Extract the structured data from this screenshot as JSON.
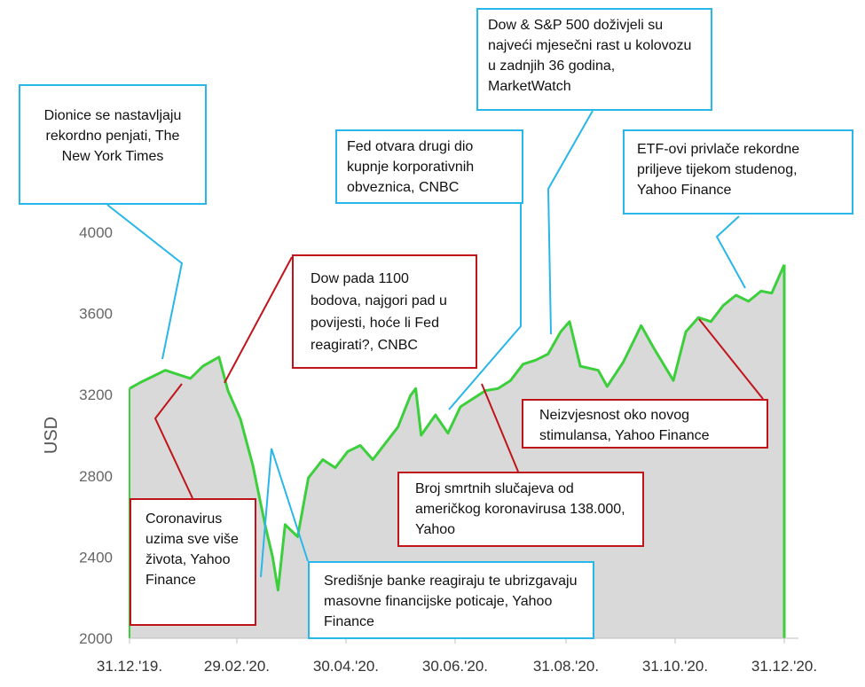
{
  "chart_data": {
    "type": "area",
    "ylabel": "USD",
    "xlabel": "",
    "ylim": [
      2000,
      4000
    ],
    "y_ticks": [
      "2000",
      "2400",
      "2800",
      "3200",
      "3600",
      "4000"
    ],
    "x_ticks": [
      "31.12.'19.",
      "29.02.'20.",
      "30.04.'20.",
      "30.06.'20.",
      "31.08.'20.",
      "31.10.'20.",
      "31.12.'20."
    ],
    "line_color": "#3ccf3c",
    "fill_color": "#d9d9d9",
    "x": [
      "2019-12-31",
      "2020-01-06",
      "2020-01-13",
      "2020-01-20",
      "2020-01-27",
      "2020-02-03",
      "2020-02-10",
      "2020-02-19",
      "2020-02-24",
      "2020-03-02",
      "2020-03-09",
      "2020-03-16",
      "2020-03-20",
      "2020-03-23",
      "2020-03-27",
      "2020-04-03",
      "2020-04-09",
      "2020-04-17",
      "2020-04-24",
      "2020-05-01",
      "2020-05-08",
      "2020-05-15",
      "2020-05-22",
      "2020-05-29",
      "2020-06-05",
      "2020-06-08",
      "2020-06-11",
      "2020-06-19",
      "2020-06-26",
      "2020-07-03",
      "2020-07-10",
      "2020-07-17",
      "2020-07-24",
      "2020-07-31",
      "2020-08-07",
      "2020-08-14",
      "2020-08-21",
      "2020-08-28",
      "2020-09-02",
      "2020-09-08",
      "2020-09-18",
      "2020-09-23",
      "2020-10-02",
      "2020-10-12",
      "2020-10-19",
      "2020-10-30",
      "2020-11-06",
      "2020-11-13",
      "2020-11-20",
      "2020-11-27",
      "2020-12-04",
      "2020-12-11",
      "2020-12-18",
      "2020-12-24",
      "2020-12-31"
    ],
    "series": [
      {
        "values": [
          3230,
          3260,
          3290,
          3320,
          3300,
          3280,
          3340,
          3385,
          3220,
          3080,
          2850,
          2550,
          2400,
          2237,
          2560,
          2500,
          2790,
          2880,
          2840,
          2920,
          2950,
          2880,
          2960,
          3040,
          3195,
          3230,
          3000,
          3100,
          3010,
          3140,
          3180,
          3220,
          3230,
          3270,
          3350,
          3370,
          3400,
          3510,
          3560,
          3340,
          3320,
          3240,
          3360,
          3540,
          3430,
          3270,
          3510,
          3580,
          3560,
          3640,
          3690,
          3660,
          3710,
          3700,
          3840
        ]
      }
    ]
  },
  "callouts": [
    {
      "id": "dionice",
      "text": "Dionice se nastavljaju rekordno penjati, The New York Times"
    },
    {
      "id": "dow_sp",
      "text": "Dow & S&P 500 doživjeli su najveći mjesečni rast u kolovozu u zadnjih 36 godina, MarketWatch"
    },
    {
      "id": "fed_otvara",
      "text": "Fed otvara drugi dio kupnje korporativnih obveznica, CNBC"
    },
    {
      "id": "etf",
      "text": "ETF-ovi privlače rekordne priljeve tijekom studenog, Yahoo Finance"
    },
    {
      "id": "dow_pada",
      "text": "Dow pada 1100 bodova, najgori pad u povijesti, hoće li Fed reagirati?, CNBC"
    },
    {
      "id": "neizvjesnost",
      "text": "Neizvjesnost oko novog stimulansa, Yahoo Finance"
    },
    {
      "id": "broj",
      "text": "Broj smrtnih slučajeva od američkog koronavirusa 138.000, Yahoo"
    },
    {
      "id": "corona",
      "text": "Coronavirus uzima sve više života, Yahoo Finance"
    },
    {
      "id": "sredisnje",
      "text": "Središnje banke reagiraju te ubrizgavaju masovne financijske poticaje, Yahoo Finance"
    }
  ],
  "colors": {
    "blue_callout": "#29b6e8",
    "red_callout": "#c0141b",
    "axis": "#bfbfbf"
  }
}
